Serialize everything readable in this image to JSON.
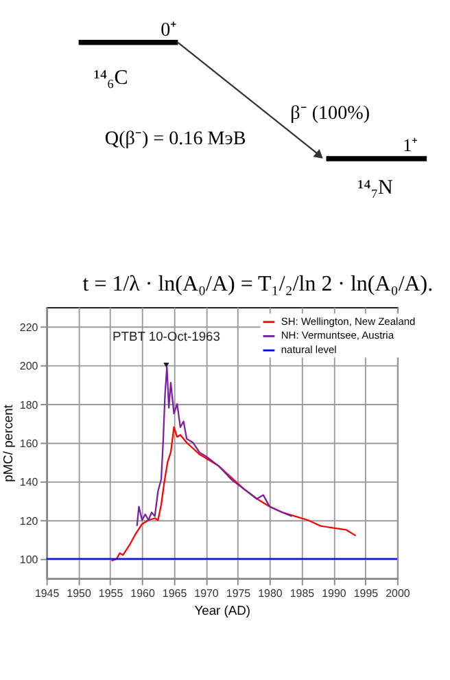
{
  "chart_data": {
    "type": "line",
    "annotations": [
      "0⁺",
      "¹⁴₆C",
      "β⁻ (100%)",
      "Q(β⁻) = 0.16 МэВ",
      "1⁺",
      "¹⁴₇N",
      "t = 1/λ · ln(A₀/A) = T₁/₂/ln 2 · ln(A₀/A).",
      {
        "text": "PTBT 10-Oct-1963",
        "x": 1963.8,
        "y": 200
      }
    ],
    "xlabel": "Year (AD)",
    "ylabel": "pMC/ percent",
    "series": [
      {
        "name": "SH: Wellington, New Zealand",
        "color": "#ff0000",
        "x": [
          1955.2,
          1956,
          1956.5,
          1957,
          1958,
          1959,
          1960,
          1961,
          1962,
          1962.5,
          1963,
          1963.5,
          1964,
          1964.5,
          1965,
          1965.5,
          1966,
          1967,
          1968,
          1969,
          1970,
          1972,
          1974,
          1976,
          1978,
          1980,
          1982,
          1984,
          1986,
          1988,
          1990,
          1992,
          1993.5
        ],
        "values": [
          99,
          100,
          103,
          102,
          107,
          113,
          118,
          120,
          121,
          120,
          128,
          140,
          150,
          155,
          168,
          163,
          164,
          160,
          157,
          154,
          152,
          148,
          142,
          136,
          131,
          127,
          124,
          122,
          120,
          117,
          116,
          115,
          112
        ]
      },
      {
        "name": "NH: Vermuntsee, Austria",
        "color": "#7a1fa2",
        "x": [
          1959.2,
          1959.5,
          1960,
          1960.5,
          1961,
          1961.5,
          1962,
          1962.5,
          1963,
          1963.3,
          1963.6,
          1963.9,
          1964.2,
          1964.5,
          1965,
          1965.5,
          1966,
          1966.5,
          1967,
          1968,
          1969,
          1970,
          1972,
          1974,
          1976,
          1978,
          1979,
          1980,
          1982,
          1983.5
        ],
        "values": [
          117,
          127,
          120,
          123,
          120,
          124,
          122,
          135,
          141,
          160,
          185,
          199,
          178,
          191,
          175,
          180,
          168,
          171,
          162,
          160,
          155,
          153,
          148,
          141,
          136,
          131,
          133,
          127,
          124,
          122
        ]
      },
      {
        "name": "natural level",
        "color": "#0000ff",
        "x": [
          1945,
          2000
        ],
        "values": [
          100,
          100
        ]
      }
    ],
    "xlim": [
      1945,
      2000
    ],
    "xticks": [
      1945,
      1950,
      1955,
      1960,
      1965,
      1970,
      1975,
      1980,
      1985,
      1990,
      1995,
      2000
    ],
    "ylim": [
      90,
      230
    ],
    "yticks": [
      100,
      120,
      140,
      160,
      180,
      200,
      220
    ],
    "grid": true,
    "legend": "top right",
    "marker": "none",
    "line_style": "solid"
  }
}
